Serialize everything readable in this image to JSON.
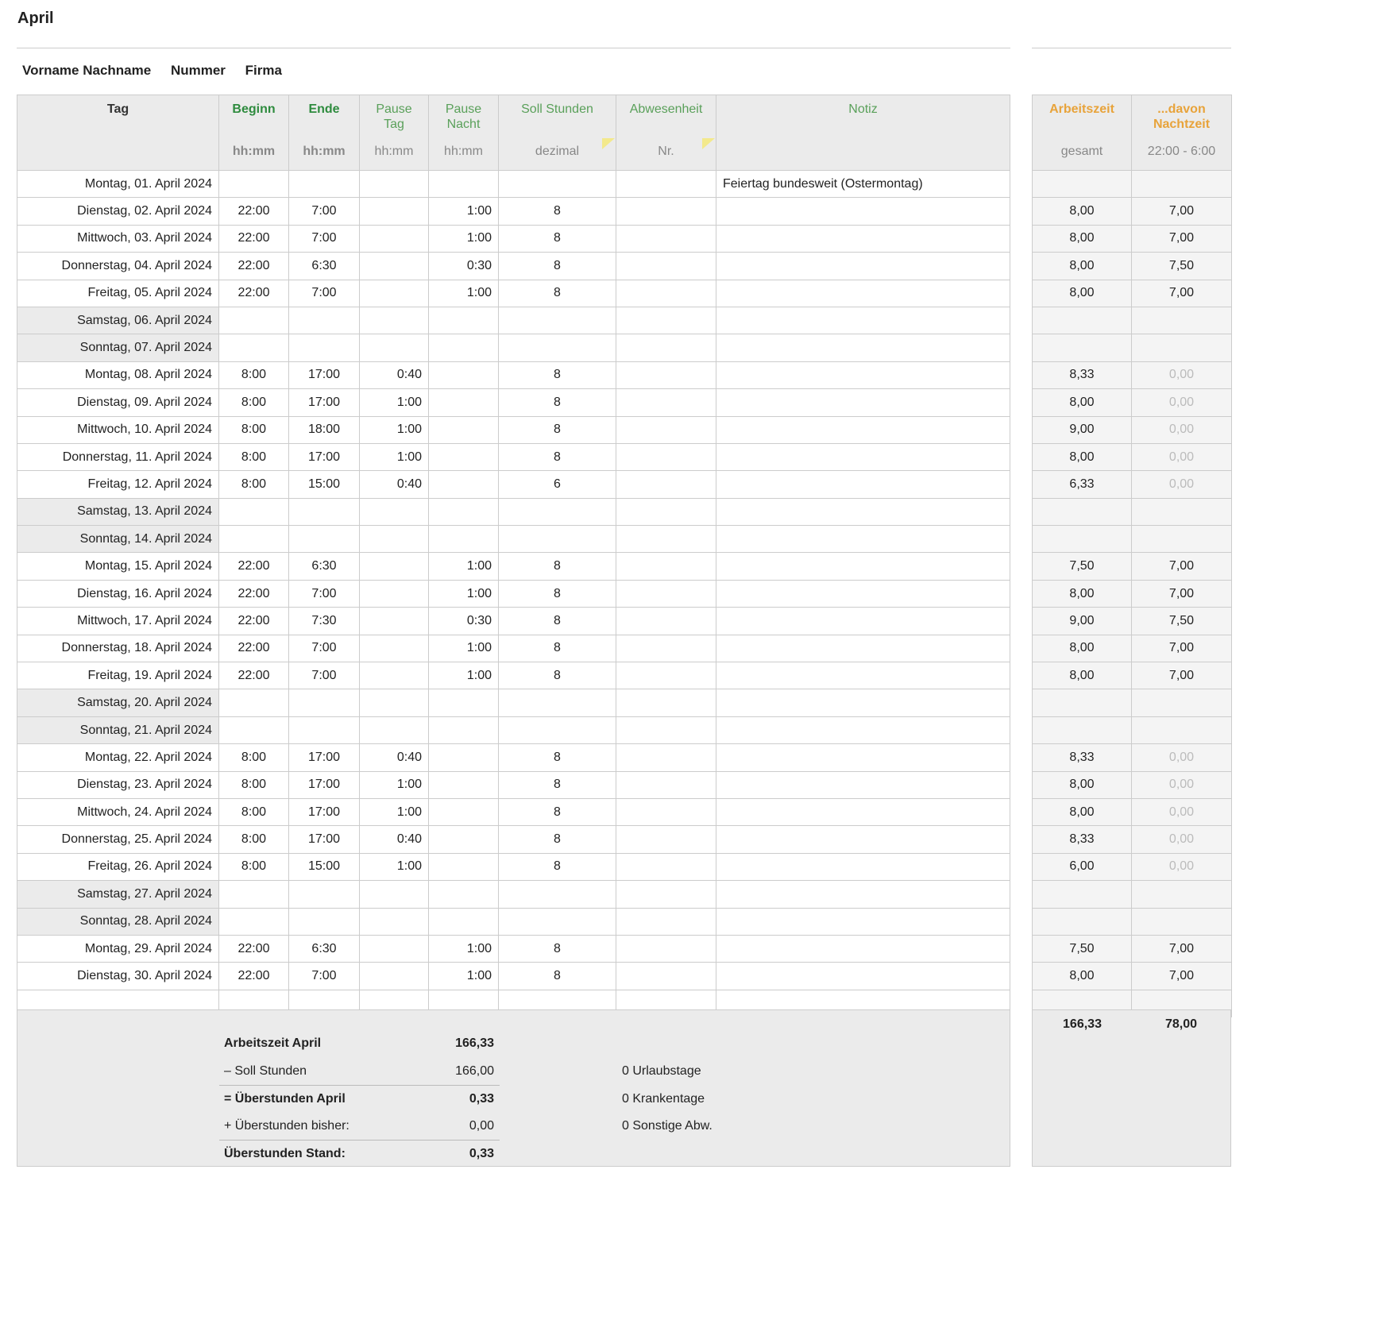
{
  "title": "April",
  "info": {
    "name": "Vorname Nachname",
    "number": "Nummer",
    "company": "Firma"
  },
  "headers": {
    "tag": "Tag",
    "beginn": "Beginn",
    "beginn_sub": "hh:mm",
    "ende": "Ende",
    "ende_sub": "hh:mm",
    "pause_tag": "Pause Tag",
    "pause_tag_sub": "hh:mm",
    "pause_nacht": "Pause Nacht",
    "pause_nacht_sub": "hh:mm",
    "soll": "Soll Stunden",
    "soll_sub": "dezimal",
    "abw": "Abwesenheit",
    "abw_sub": "Nr.",
    "notiz": "Notiz",
    "arbeitszeit": "Arbeitszeit",
    "arbeitszeit_sub": "gesamt",
    "nacht": "...davon Nachtzeit",
    "nacht_sub": "22:00 - 6:00"
  },
  "rows": [
    [
      "Montag, 01. April 2024",
      "",
      "",
      "",
      "",
      "",
      "",
      "Feiertag bundesweit (Ostermontag)",
      "",
      "",
      0
    ],
    [
      "Dienstag, 02. April 2024",
      "22:00",
      "7:00",
      "",
      "1:00",
      "8",
      "",
      "",
      "8,00",
      "7,00",
      0
    ],
    [
      "Mittwoch, 03. April 2024",
      "22:00",
      "7:00",
      "",
      "1:00",
      "8",
      "",
      "",
      "8,00",
      "7,00",
      0
    ],
    [
      "Donnerstag, 04. April 2024",
      "22:00",
      "6:30",
      "",
      "0:30",
      "8",
      "",
      "",
      "8,00",
      "7,50",
      0
    ],
    [
      "Freitag, 05. April 2024",
      "22:00",
      "7:00",
      "",
      "1:00",
      "8",
      "",
      "",
      "8,00",
      "7,00",
      0
    ],
    [
      "Samstag, 06. April 2024",
      "",
      "",
      "",
      "",
      "",
      "",
      "",
      "",
      "",
      1
    ],
    [
      "Sonntag, 07. April 2024",
      "",
      "",
      "",
      "",
      "",
      "",
      "",
      "",
      "",
      1
    ],
    [
      "Montag, 08. April 2024",
      "8:00",
      "17:00",
      "0:40",
      "",
      "8",
      "",
      "",
      "8,33",
      "0,00",
      0
    ],
    [
      "Dienstag, 09. April 2024",
      "8:00",
      "17:00",
      "1:00",
      "",
      "8",
      "",
      "",
      "8,00",
      "0,00",
      0
    ],
    [
      "Mittwoch, 10. April 2024",
      "8:00",
      "18:00",
      "1:00",
      "",
      "8",
      "",
      "",
      "9,00",
      "0,00",
      0
    ],
    [
      "Donnerstag, 11. April 2024",
      "8:00",
      "17:00",
      "1:00",
      "",
      "8",
      "",
      "",
      "8,00",
      "0,00",
      0
    ],
    [
      "Freitag, 12. April 2024",
      "8:00",
      "15:00",
      "0:40",
      "",
      "6",
      "",
      "",
      "6,33",
      "0,00",
      0
    ],
    [
      "Samstag, 13. April 2024",
      "",
      "",
      "",
      "",
      "",
      "",
      "",
      "",
      "",
      1
    ],
    [
      "Sonntag, 14. April 2024",
      "",
      "",
      "",
      "",
      "",
      "",
      "",
      "",
      "",
      1
    ],
    [
      "Montag, 15. April 2024",
      "22:00",
      "6:30",
      "",
      "1:00",
      "8",
      "",
      "",
      "7,50",
      "7,00",
      0
    ],
    [
      "Dienstag, 16. April 2024",
      "22:00",
      "7:00",
      "",
      "1:00",
      "8",
      "",
      "",
      "8,00",
      "7,00",
      0
    ],
    [
      "Mittwoch, 17. April 2024",
      "22:00",
      "7:30",
      "",
      "0:30",
      "8",
      "",
      "",
      "9,00",
      "7,50",
      0
    ],
    [
      "Donnerstag, 18. April 2024",
      "22:00",
      "7:00",
      "",
      "1:00",
      "8",
      "",
      "",
      "8,00",
      "7,00",
      0
    ],
    [
      "Freitag, 19. April 2024",
      "22:00",
      "7:00",
      "",
      "1:00",
      "8",
      "",
      "",
      "8,00",
      "7,00",
      0
    ],
    [
      "Samstag, 20. April 2024",
      "",
      "",
      "",
      "",
      "",
      "",
      "",
      "",
      "",
      1
    ],
    [
      "Sonntag, 21. April 2024",
      "",
      "",
      "",
      "",
      "",
      "",
      "",
      "",
      "",
      1
    ],
    [
      "Montag, 22. April 2024",
      "8:00",
      "17:00",
      "0:40",
      "",
      "8",
      "",
      "",
      "8,33",
      "0,00",
      0
    ],
    [
      "Dienstag, 23. April 2024",
      "8:00",
      "17:00",
      "1:00",
      "",
      "8",
      "",
      "",
      "8,00",
      "0,00",
      0
    ],
    [
      "Mittwoch, 24. April 2024",
      "8:00",
      "17:00",
      "1:00",
      "",
      "8",
      "",
      "",
      "8,00",
      "0,00",
      0
    ],
    [
      "Donnerstag, 25. April 2024",
      "8:00",
      "17:00",
      "0:40",
      "",
      "8",
      "",
      "",
      "8,33",
      "0,00",
      0
    ],
    [
      "Freitag, 26. April 2024",
      "8:00",
      "15:00",
      "1:00",
      "",
      "8",
      "",
      "",
      "6,00",
      "0,00",
      0
    ],
    [
      "Samstag, 27. April 2024",
      "",
      "",
      "",
      "",
      "",
      "",
      "",
      "",
      "",
      1
    ],
    [
      "Sonntag, 28. April 2024",
      "",
      "",
      "",
      "",
      "",
      "",
      "",
      "",
      "",
      1
    ],
    [
      "Montag, 29. April 2024",
      "22:00",
      "6:30",
      "",
      "1:00",
      "8",
      "",
      "",
      "7,50",
      "7,00",
      0
    ],
    [
      "Dienstag, 30. April 2024",
      "22:00",
      "7:00",
      "",
      "1:00",
      "8",
      "",
      "",
      "8,00",
      "7,00",
      0
    ],
    [
      "",
      "",
      "",
      "",
      "",
      "",
      "",
      "",
      "",
      "",
      0
    ]
  ],
  "totals": {
    "arbeitszeit": "166,33",
    "nacht": "78,00"
  },
  "summary": {
    "arbeitszeit_label": "Arbeitszeit April",
    "arbeitszeit": "166,33",
    "soll_label": "– Soll Stunden",
    "soll": "166,00",
    "ueber_label": "= Überstunden April",
    "ueber": "0,33",
    "bisher_label": "+ Überstunden bisher:",
    "bisher": "0,00",
    "stand_label": "Überstunden Stand:",
    "stand": "0,33",
    "urlaub": "0 Urlaubstage",
    "krank": "0 Krankentage",
    "sonst": "0 Sonstige Abw."
  },
  "colors": {
    "green": "#2e8b3e",
    "light_green": "#5aa05a",
    "orange": "#e8a33a",
    "note_marker": "#f3e98c"
  }
}
